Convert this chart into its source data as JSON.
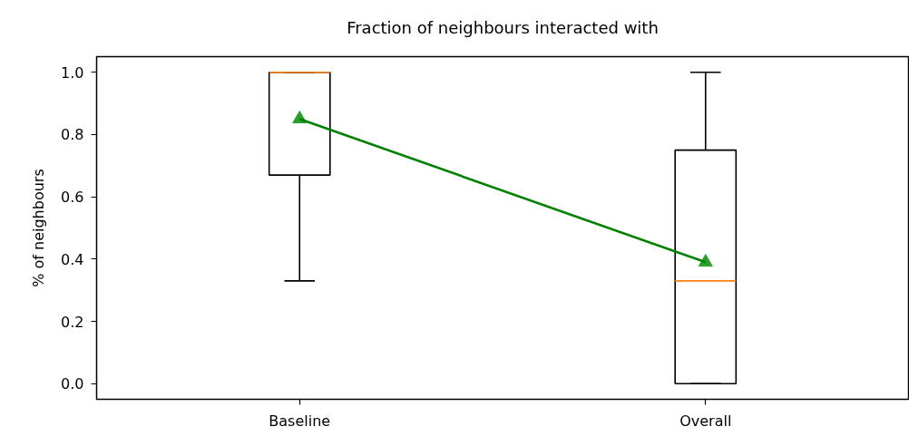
{
  "chart_data": {
    "type": "box",
    "title": "Fraction of neighbours interacted with",
    "ylabel": "% of neighbours",
    "categories": [
      "Baseline",
      "Overall"
    ],
    "ylim": [
      -0.05,
      1.05
    ],
    "yticks": [
      {
        "value": 0,
        "label": "0.0"
      },
      0.2,
      0.4,
      0.6,
      0.8,
      {
        "value": 1,
        "label": "1.0"
      }
    ],
    "grid": false,
    "series": [
      {
        "color": "#000000",
        "boxes": [
          {
            "low": 0.33,
            "q1": 0.67,
            "median": 1.0,
            "q3": 1.0,
            "high": 1.0,
            "mean": 0.85
          },
          {
            "low": 0.0,
            "q1": 0.0,
            "median": 0.33,
            "q3": 0.75,
            "high": 1.0,
            "mean": 0.39
          }
        ]
      },
      {
        "type": "line",
        "color": "#008000",
        "values": [
          0.85,
          0.39
        ]
      }
    ]
  }
}
